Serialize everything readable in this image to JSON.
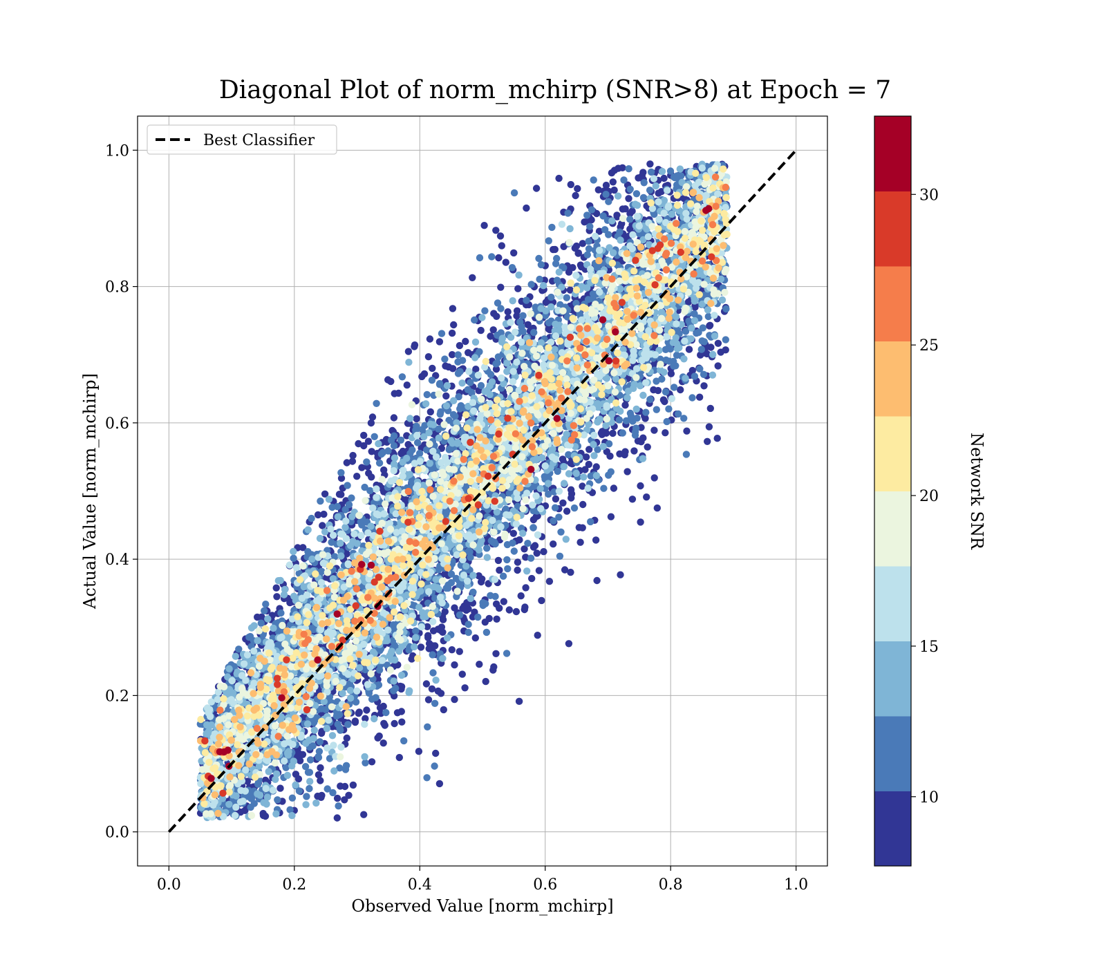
{
  "chart_data": {
    "type": "scatter",
    "title": "Diagonal Plot of norm_mchirp (SNR>8) at Epoch = 7",
    "xlabel": "Observed Value [norm_mchirp]",
    "ylabel": "Actual Value [norm_mchirp]",
    "xlim": [
      -0.05,
      1.05
    ],
    "ylim": [
      -0.05,
      1.05
    ],
    "xticks": [
      "0.0",
      "0.2",
      "0.4",
      "0.6",
      "0.8",
      "1.0"
    ],
    "yticks": [
      "0.0",
      "0.2",
      "0.4",
      "0.6",
      "0.8",
      "1.0"
    ],
    "grid": true,
    "legend": {
      "location": "upper-left",
      "entries": [
        "Best Classifier"
      ]
    },
    "reference_line": {
      "name": "Best Classifier",
      "style": "dashed",
      "color": "#000000",
      "x": [
        0,
        1
      ],
      "y": [
        0,
        1
      ]
    },
    "colorbar": {
      "label": "Network SNR",
      "range": [
        7.7,
        32.6
      ],
      "ticks": [
        "10",
        "15",
        "20",
        "25",
        "30"
      ],
      "colors": [
        "#313695",
        "#4a7ab8",
        "#7fb5d6",
        "#bde1ec",
        "#ebf5df",
        "#fdeba1",
        "#fdbd70",
        "#f57d4b",
        "#d93a29",
        "#a50026"
      ]
    },
    "point_summary": {
      "approx_count": 12000,
      "x_range": [
        0.05,
        0.89
      ],
      "y_range": [
        0.0,
        1.0
      ],
      "trend": "points cluster along the y = x diagonal; higher SNR points lie closer to the diagonal, low SNR points spread widely"
    }
  }
}
